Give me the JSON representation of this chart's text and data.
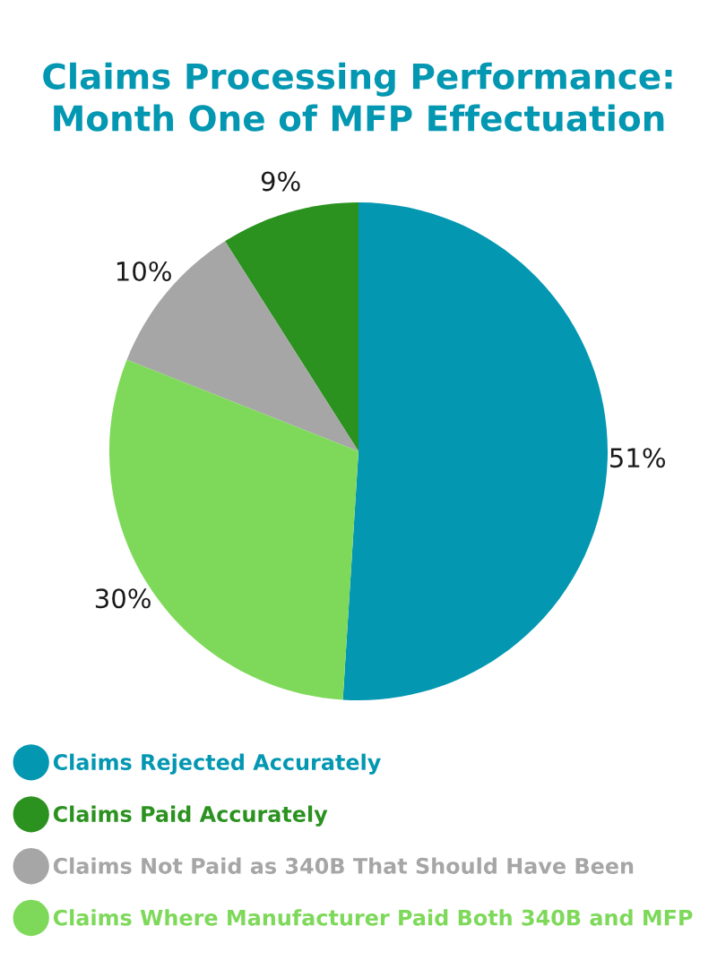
{
  "chart_data": {
    "type": "pie",
    "title": "Claims Processing Performance: Month One of MFP Effectuation",
    "categories": [
      "Claims Rejected Accurately",
      "Claims Paid Accurately",
      "Claims Not Paid as 340B That Should Have Been",
      "Claims Where Manufacturer Paid Both 340B and MFP"
    ],
    "values": [
      51,
      9,
      10,
      30
    ],
    "colors": [
      "#0397b2",
      "#2b921f",
      "#a6a6a6",
      "#7ed95a"
    ],
    "value_labels": [
      "51%",
      "9%",
      "10%",
      "30%"
    ],
    "legend": "bottom"
  }
}
